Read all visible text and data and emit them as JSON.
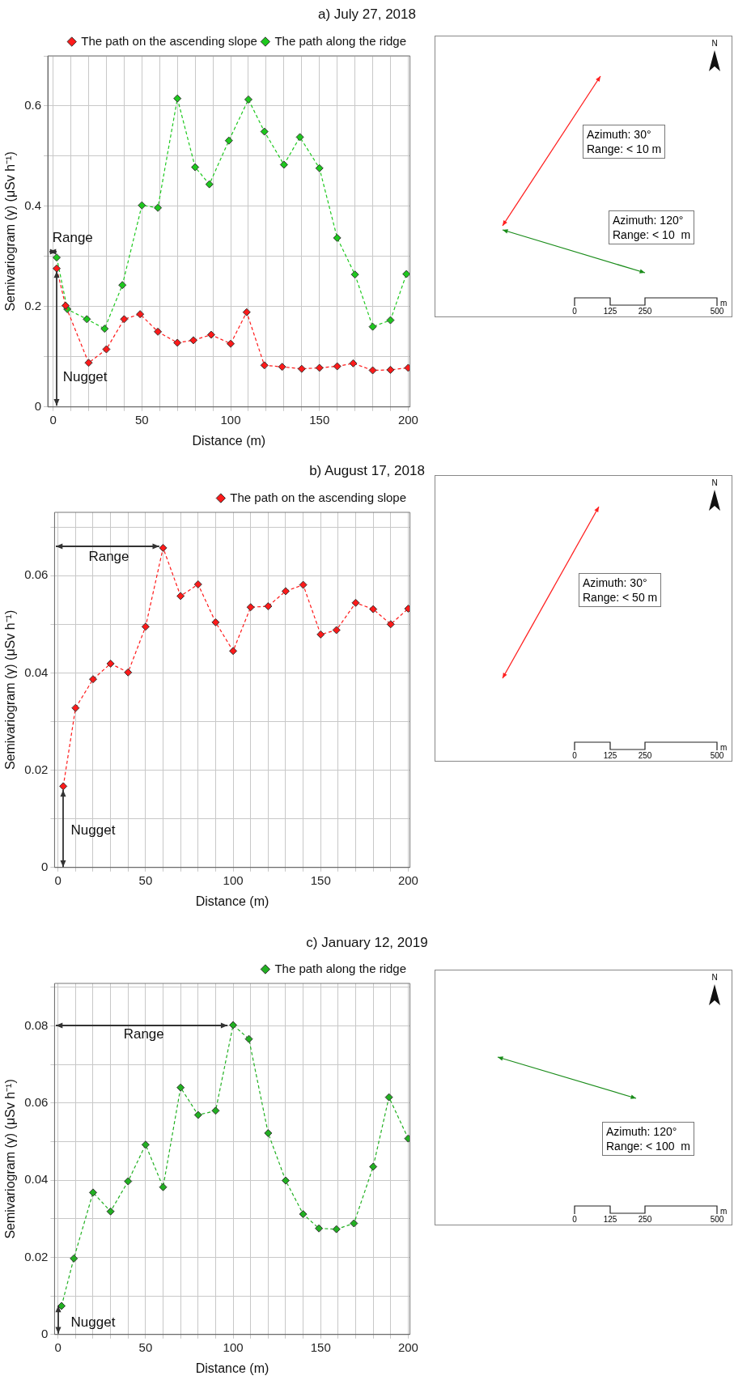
{
  "chart_data": [
    {
      "type": "line",
      "title": "a) July 27, 2018",
      "xlabel": "Distance (m)",
      "ylabel": "Semivariogram (γ) (μSv h⁻¹)",
      "series": [
        {
          "name": "The path on the ascending slope",
          "color": "#ff1a1a",
          "x": [
            2,
            7,
            20,
            30,
            40,
            49,
            59,
            70,
            79,
            89,
            100,
            109,
            119,
            129,
            140,
            150,
            160,
            169,
            180,
            190,
            200
          ],
          "values": [
            0.276,
            0.202,
            0.088,
            0.115,
            0.175,
            0.185,
            0.15,
            0.128,
            0.133,
            0.144,
            0.126,
            0.189,
            0.083,
            0.08,
            0.076,
            0.078,
            0.081,
            0.087,
            0.073,
            0.074,
            0.078
          ]
        },
        {
          "name": "The path along the ridge",
          "color": "#1ec81e",
          "x": [
            2,
            8,
            19,
            29,
            39,
            50,
            59,
            70,
            80,
            88,
            99,
            110,
            119,
            130,
            139,
            150,
            160,
            170,
            180,
            190,
            199
          ],
          "values": [
            0.298,
            0.195,
            0.175,
            0.156,
            0.243,
            0.402,
            0.397,
            0.615,
            0.478,
            0.444,
            0.531,
            0.613,
            0.549,
            0.483,
            0.538,
            0.476,
            0.337,
            0.264,
            0.16,
            0.173,
            0.265
          ]
        }
      ],
      "xlim": [
        -3,
        201
      ],
      "xticks": [
        0,
        {
          "value": 10,
          "label": null
        },
        {
          "value": 20,
          "label": null
        },
        {
          "value": 30,
          "label": null
        },
        {
          "value": 40,
          "label": null
        },
        50,
        {
          "value": 60,
          "label": null
        },
        {
          "value": 70,
          "label": null
        },
        {
          "value": 80,
          "label": null
        },
        {
          "value": 90,
          "label": null
        },
        100,
        {
          "value": 110,
          "label": null
        },
        {
          "value": 120,
          "label": null
        },
        {
          "value": 130,
          "label": null
        },
        {
          "value": 140,
          "label": null
        },
        150,
        {
          "value": 160,
          "label": null
        },
        {
          "value": 170,
          "label": null
        },
        {
          "value": 180,
          "label": null
        },
        {
          "value": 190,
          "label": null
        },
        200
      ],
      "ylim": [
        0,
        0.7
      ],
      "yticks": [
        0,
        {
          "value": 0.1,
          "label": null
        },
        0.2,
        {
          "value": 0.3,
          "label": null
        },
        0.4,
        {
          "value": 0.5,
          "label": null
        },
        0.6,
        {
          "value": 0.7,
          "label": null
        }
      ],
      "annotations": [
        "Range",
        "Nugget"
      ],
      "grid": true,
      "legend": "top right",
      "marker": "diamond",
      "line_style": "dashed"
    },
    {
      "type": "other",
      "annotations": [
        "N",
        "Azimuth: 30°",
        "Range: < 10 m",
        "Azimuth: 120°",
        "Range: < 10  m",
        "0",
        "125",
        "250",
        "500",
        "m"
      ]
    },
    {
      "type": "line",
      "title": "b) August 17, 2018",
      "xlabel": "Distance (m)",
      "ylabel": "Semivariogram (γ) (μSv h⁻¹)",
      "series": [
        {
          "name": "The path on the ascending slope",
          "color": "#ff1a1a",
          "x": [
            3,
            10,
            20,
            30,
            40,
            50,
            60,
            70,
            80,
            90,
            100,
            110,
            120,
            130,
            140,
            150,
            159,
            170,
            180,
            190,
            200
          ],
          "values": [
            0.0167,
            0.0328,
            0.0387,
            0.0419,
            0.0401,
            0.0495,
            0.0657,
            0.0558,
            0.0582,
            0.0504,
            0.0445,
            0.0535,
            0.0537,
            0.0568,
            0.0581,
            0.0479,
            0.0488,
            0.0544,
            0.0531,
            0.05,
            0.0532
          ]
        }
      ],
      "xlim": [
        -2,
        201
      ],
      "xticks": [
        0,
        {
          "value": 10,
          "label": null
        },
        {
          "value": 20,
          "label": null
        },
        {
          "value": 30,
          "label": null
        },
        {
          "value": 40,
          "label": null
        },
        50,
        {
          "value": 60,
          "label": null
        },
        {
          "value": 70,
          "label": null
        },
        {
          "value": 80,
          "label": null
        },
        {
          "value": 90,
          "label": null
        },
        100,
        {
          "value": 110,
          "label": null
        },
        {
          "value": 120,
          "label": null
        },
        {
          "value": 130,
          "label": null
        },
        {
          "value": 140,
          "label": null
        },
        150,
        {
          "value": 160,
          "label": null
        },
        {
          "value": 170,
          "label": null
        },
        {
          "value": 180,
          "label": null
        },
        {
          "value": 190,
          "label": null
        },
        200
      ],
      "ylim": [
        0,
        0.073
      ],
      "yticks": [
        0,
        {
          "value": 0.01,
          "label": null
        },
        0.02,
        {
          "value": 0.03,
          "label": null
        },
        0.04,
        {
          "value": 0.05,
          "label": null
        },
        0.06,
        {
          "value": 0.07,
          "label": null
        }
      ],
      "annotations": [
        "Range",
        "Nugget"
      ],
      "grid": true,
      "legend": "top right",
      "marker": "diamond",
      "line_style": "dashed"
    },
    {
      "type": "other",
      "annotations": [
        "N",
        "Azimuth: 30°",
        "Range: < 50 m",
        "0",
        "125",
        "250",
        "500",
        "m"
      ]
    },
    {
      "type": "line",
      "title": "c) January 12, 2019",
      "xlabel": "Distance (m)",
      "ylabel": "Semivariogram (γ) (μSv h⁻¹)",
      "series": [
        {
          "name": "The path along the ridge",
          "color": "#22b022",
          "x": [
            2,
            9,
            20,
            30,
            40,
            50,
            60,
            70,
            80,
            90,
            100,
            109,
            120,
            130,
            140,
            149,
            159,
            169,
            180,
            189,
            200
          ],
          "values": [
            0.0074,
            0.0197,
            0.0368,
            0.0319,
            0.0397,
            0.0492,
            0.0382,
            0.064,
            0.0569,
            0.058,
            0.0802,
            0.0766,
            0.0522,
            0.0399,
            0.0312,
            0.0275,
            0.0273,
            0.0288,
            0.0435,
            0.0615,
            0.0508
          ]
        }
      ],
      "xlim": [
        -2,
        201
      ],
      "xticks": [
        0,
        {
          "value": 10,
          "label": null
        },
        {
          "value": 20,
          "label": null
        },
        {
          "value": 30,
          "label": null
        },
        {
          "value": 40,
          "label": null
        },
        50,
        {
          "value": 60,
          "label": null
        },
        {
          "value": 70,
          "label": null
        },
        {
          "value": 80,
          "label": null
        },
        {
          "value": 90,
          "label": null
        },
        100,
        {
          "value": 110,
          "label": null
        },
        {
          "value": 120,
          "label": null
        },
        {
          "value": 130,
          "label": null
        },
        {
          "value": 140,
          "label": null
        },
        150,
        {
          "value": 160,
          "label": null
        },
        {
          "value": 170,
          "label": null
        },
        {
          "value": 180,
          "label": null
        },
        {
          "value": 190,
          "label": null
        },
        200
      ],
      "ylim": [
        0,
        0.091
      ],
      "yticks": [
        0,
        {
          "value": 0.01,
          "label": null
        },
        0.02,
        {
          "value": 0.03,
          "label": null
        },
        0.04,
        {
          "value": 0.05,
          "label": null
        },
        0.06,
        {
          "value": 0.07,
          "label": null
        },
        0.08,
        {
          "value": 0.09,
          "label": null
        }
      ],
      "annotations": [
        "Range",
        "Nugget"
      ],
      "grid": true,
      "legend": "top right",
      "marker": "diamond",
      "line_style": "dashed"
    },
    {
      "type": "other",
      "annotations": [
        "N",
        "Azimuth: 120°",
        "Range: < 100  m",
        "0",
        "125",
        "250",
        "500",
        "m"
      ]
    }
  ]
}
